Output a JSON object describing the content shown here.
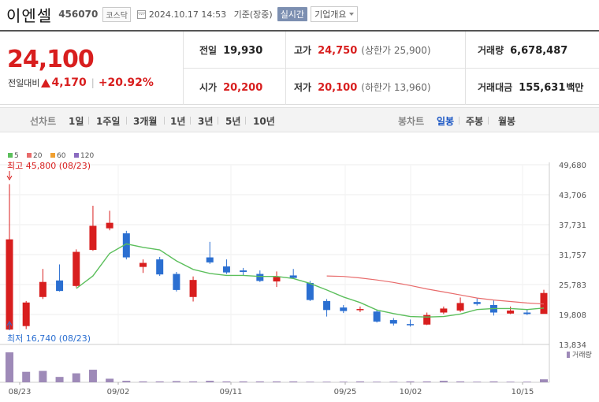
{
  "header": {
    "name": "이엔셀",
    "code": "456070",
    "market": "코스닥",
    "datetime": "2024.10.17 14:53",
    "basis": "기준(장중)",
    "realtime_label": "실시간",
    "company_label": "기업개요"
  },
  "price": {
    "current": "24,100",
    "change_label": "전일대비",
    "change_amount": "4,170",
    "change_pct": "+20.92%",
    "prev_label": "전일",
    "prev": "19,930",
    "high_label": "고가",
    "high": "24,750",
    "upper_limit": "(상한가 25,900)",
    "volume_label": "거래량",
    "volume": "6,678,487",
    "open_label": "시가",
    "open": "20,200",
    "low_label": "저가",
    "low": "20,100",
    "lower_limit": "(하한가 13,960)",
    "amount_label": "거래대금",
    "amount": "155,631",
    "amount_unit": "백만"
  },
  "tabs": {
    "line_chart": "선차트",
    "periods": [
      "1일",
      "1주일",
      "3개월",
      "1년",
      "3년",
      "5년",
      "10년"
    ],
    "candle_chart": "봉차트",
    "candles": [
      "일봉",
      "주봉",
      "월봉"
    ],
    "active_candle": "일봉"
  },
  "colors": {
    "up": "#d81e1e",
    "down": "#2b6fd1",
    "ma5": "#5cbf5c",
    "ma20": "#e86b6b",
    "ma60": "#f0a030",
    "ma120": "#8a6bc0",
    "volume": "#9e8ab8"
  },
  "chart_data": {
    "type": "candlestick",
    "legend": [
      "5",
      "20",
      "60",
      "120"
    ],
    "y_ticks": [
      "49,680",
      "43,706",
      "37,731",
      "31,757",
      "25,783",
      "19,808",
      "13,834"
    ],
    "ylim": [
      13834,
      49680
    ],
    "x_labels": [
      "08/23",
      "09/02",
      "09/11",
      "09/25",
      "10/02",
      "10/15"
    ],
    "high_annotation": "최고 45,800 (08/23)",
    "low_annotation": "최저 16,740 (08/23)",
    "volume_label": "거래량",
    "candles": [
      {
        "o": 16800,
        "h": 45800,
        "l": 16740,
        "c": 34800
      },
      {
        "o": 17500,
        "h": 22500,
        "l": 16900,
        "c": 22200
      },
      {
        "o": 23300,
        "h": 28900,
        "l": 22900,
        "c": 26300
      },
      {
        "o": 26600,
        "h": 29800,
        "l": 24400,
        "c": 24500
      },
      {
        "o": 25500,
        "h": 32800,
        "l": 25200,
        "c": 32300
      },
      {
        "o": 32700,
        "h": 41500,
        "l": 32500,
        "c": 37500
      },
      {
        "o": 37000,
        "h": 40500,
        "l": 36600,
        "c": 38100
      },
      {
        "o": 36000,
        "h": 36500,
        "l": 30800,
        "c": 31200
      },
      {
        "o": 29300,
        "h": 30800,
        "l": 28100,
        "c": 30100
      },
      {
        "o": 30800,
        "h": 31300,
        "l": 27500,
        "c": 27800
      },
      {
        "o": 27900,
        "h": 28300,
        "l": 24400,
        "c": 24700
      },
      {
        "o": 23300,
        "h": 27400,
        "l": 22400,
        "c": 26700
      },
      {
        "o": 31200,
        "h": 34300,
        "l": 29900,
        "c": 30200
      },
      {
        "o": 29400,
        "h": 30800,
        "l": 27900,
        "c": 28200
      },
      {
        "o": 28600,
        "h": 29100,
        "l": 27600,
        "c": 28300
      },
      {
        "o": 27900,
        "h": 28600,
        "l": 26300,
        "c": 26500
      },
      {
        "o": 26400,
        "h": 28400,
        "l": 25300,
        "c": 27300
      },
      {
        "o": 27600,
        "h": 28900,
        "l": 26900,
        "c": 27100
      },
      {
        "o": 26100,
        "h": 26500,
        "l": 22500,
        "c": 22700
      },
      {
        "o": 22500,
        "h": 22900,
        "l": 19400,
        "c": 20700
      },
      {
        "o": 21200,
        "h": 21700,
        "l": 20100,
        "c": 20500
      },
      {
        "o": 20900,
        "h": 21400,
        "l": 20300,
        "c": 20900
      },
      {
        "o": 20400,
        "h": 20800,
        "l": 18200,
        "c": 18400
      },
      {
        "o": 18700,
        "h": 19100,
        "l": 17600,
        "c": 18000
      },
      {
        "o": 17900,
        "h": 18800,
        "l": 17400,
        "c": 17700
      },
      {
        "o": 17800,
        "h": 20200,
        "l": 17700,
        "c": 19700
      },
      {
        "o": 20200,
        "h": 21400,
        "l": 19900,
        "c": 21000
      },
      {
        "o": 20600,
        "h": 23200,
        "l": 20300,
        "c": 22100
      },
      {
        "o": 22300,
        "h": 23000,
        "l": 21600,
        "c": 21900
      },
      {
        "o": 21700,
        "h": 22600,
        "l": 19600,
        "c": 20200
      },
      {
        "o": 20000,
        "h": 21400,
        "l": 19900,
        "c": 20600
      },
      {
        "o": 20200,
        "h": 20800,
        "l": 19700,
        "c": 19900
      },
      {
        "o": 19930,
        "h": 24750,
        "l": 20100,
        "c": 24100
      }
    ],
    "volumes": [
      100,
      35,
      38,
      18,
      30,
      42,
      12,
      5,
      3,
      3,
      4,
      3,
      5,
      3,
      3,
      3,
      3,
      3,
      2,
      2,
      2,
      3,
      2,
      2,
      3,
      3,
      5,
      3,
      2,
      3,
      2,
      2,
      10
    ],
    "ma5": [
      null,
      null,
      null,
      null,
      25000,
      27500,
      32000,
      33900,
      33200,
      32700,
      30500,
      28800,
      28000,
      27600,
      27600,
      27400,
      27400,
      27000,
      26000,
      24700,
      23300,
      22200,
      20700,
      20000,
      19400,
      19300,
      19400,
      19900,
      20800,
      21000,
      21000,
      20800,
      21100
    ],
    "ma20": [
      null,
      null,
      null,
      null,
      null,
      null,
      null,
      null,
      null,
      null,
      null,
      null,
      null,
      null,
      null,
      null,
      null,
      null,
      null,
      27500,
      27400,
      27100,
      26700,
      26200,
      25600,
      24900,
      24300,
      23700,
      23100,
      22700,
      22400,
      22100,
      21900
    ]
  }
}
